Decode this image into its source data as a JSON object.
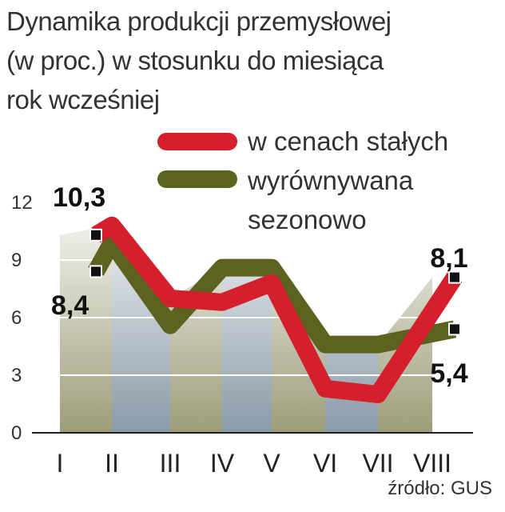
{
  "chart_data": {
    "type": "line",
    "title_lines": [
      "Dynamika produkcji przemysłowej",
      "(w proc.) w stosunku do miesiąca",
      "rok wcześniej"
    ],
    "categories": [
      "I",
      "II",
      "III",
      "IV",
      "V",
      "VI",
      "VII",
      "VIII"
    ],
    "ylim": [
      0,
      12
    ],
    "yticks": [
      0,
      3,
      6,
      9,
      12
    ],
    "grid": true,
    "legend_position": "top-right",
    "series": [
      {
        "name": "w cenach stałych",
        "color": "#d4202c",
        "values": [
          10.3,
          10.8,
          7.0,
          6.8,
          7.8,
          2.3,
          2.0,
          8.1
        ]
      },
      {
        "name": "wyrównywana sezonowo",
        "color": "#5d6220",
        "values": [
          8.4,
          9.9,
          5.6,
          8.6,
          8.6,
          4.6,
          4.6,
          5.4
        ]
      }
    ],
    "data_labels": [
      {
        "text": "10,3",
        "series": 0,
        "index": 0
      },
      {
        "text": "8,4",
        "series": 1,
        "index": 0
      },
      {
        "text": "8,1",
        "series": 0,
        "index": 7
      },
      {
        "text": "5,4",
        "series": 1,
        "index": 7
      }
    ],
    "legend_labels": {
      "constant": "w cenach stałych",
      "seasonal_line1": "wyrównywana",
      "seasonal_line2": "sezonowo"
    },
    "source": "źródło: GUS"
  }
}
